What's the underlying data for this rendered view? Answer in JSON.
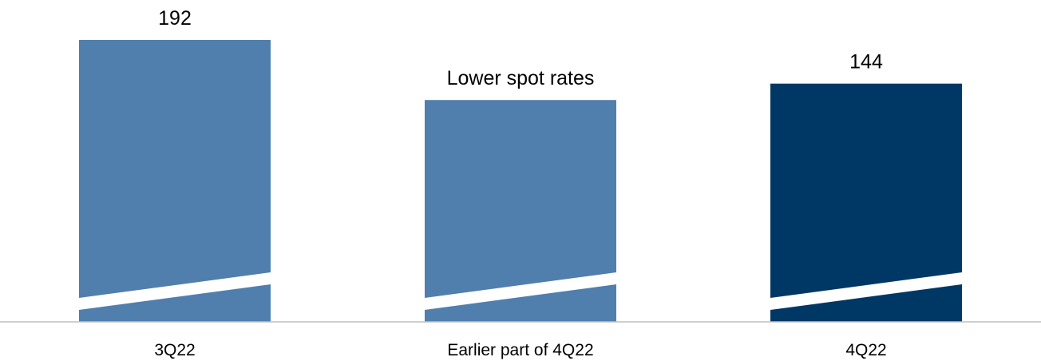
{
  "chart_data": {
    "type": "bar",
    "categories": [
      "3Q22",
      "Earlier part of 4Q22",
      "4Q22"
    ],
    "values": [
      192,
      126,
      144
    ],
    "data_labels": [
      "192",
      "Lower spot rates",
      "144"
    ],
    "colors": [
      "#507fad",
      "#507fad",
      "#003865"
    ],
    "axis_break": true,
    "title": "",
    "xlabel": "",
    "ylabel": "",
    "grid": false,
    "legend": "none"
  }
}
